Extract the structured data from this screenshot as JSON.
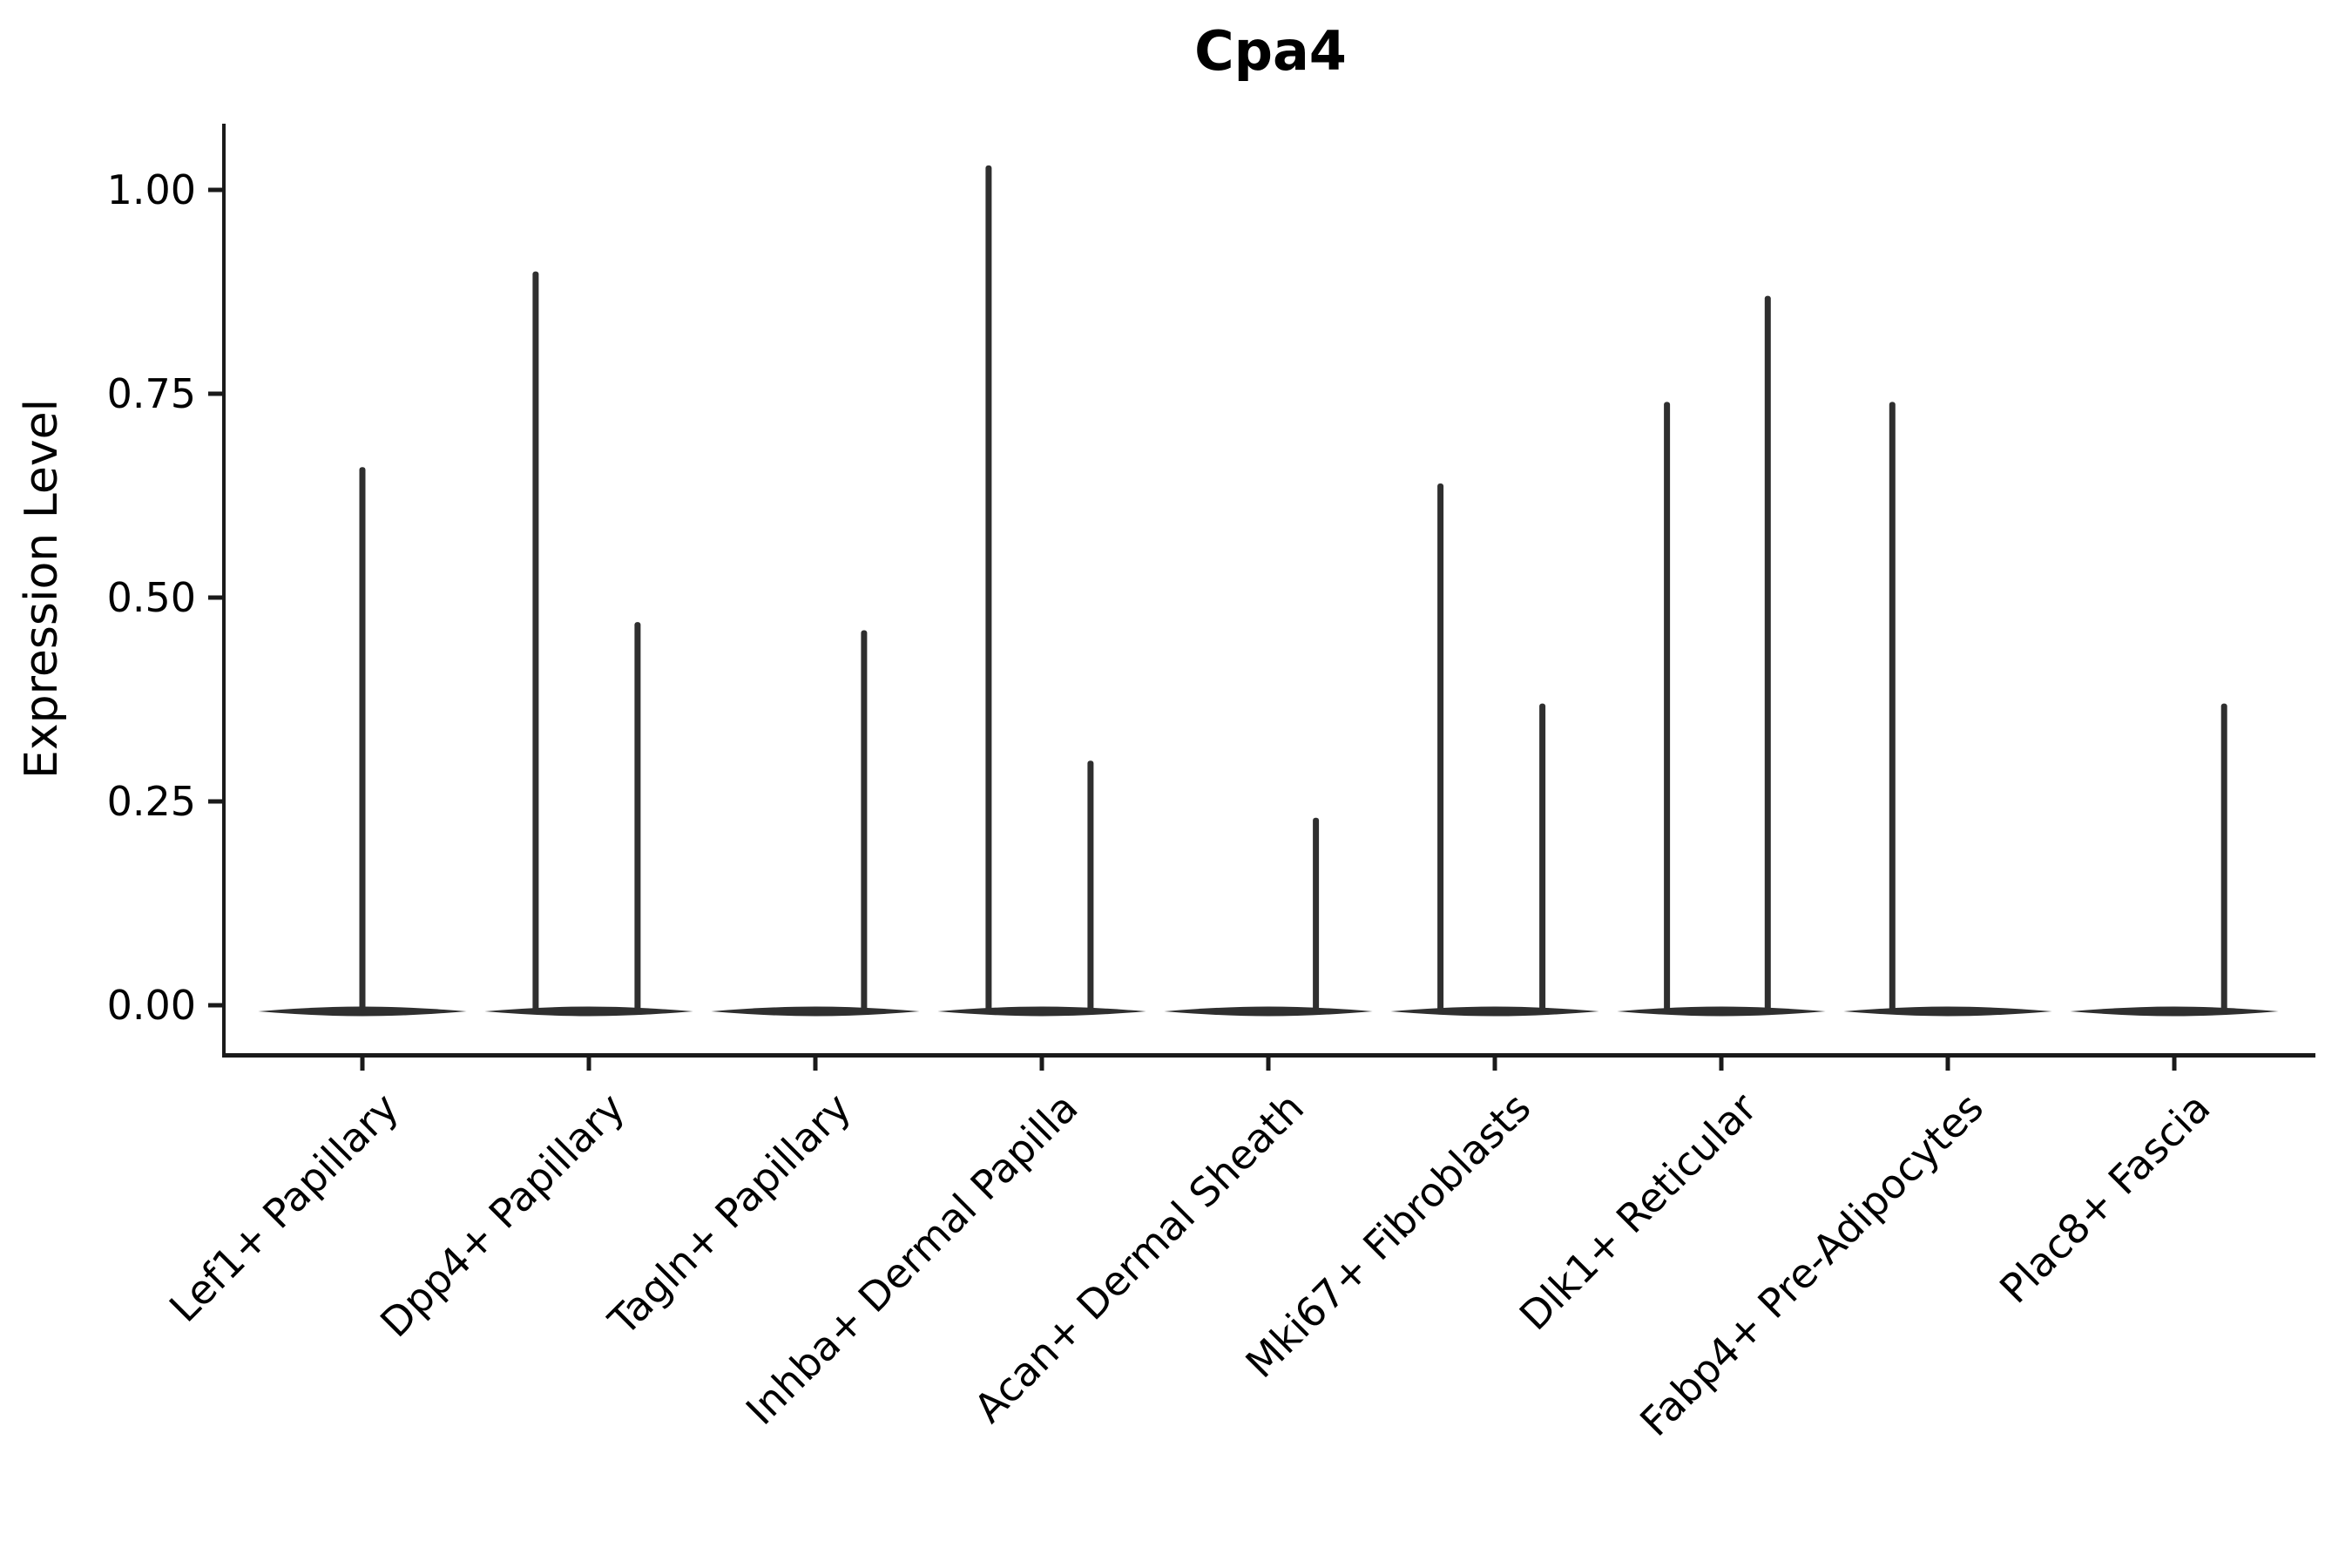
{
  "title": "Cpa4",
  "axes": {
    "ylabel": "Expression Level",
    "ytick_labels": [
      "1.00",
      "0.75",
      "0.50",
      "0.25",
      "0.00"
    ],
    "ytick_values": [
      1.0,
      0.75,
      0.5,
      0.25,
      0.0
    ]
  },
  "colors": {
    "violin": "#2f2f2f",
    "axis": "#1a1a1a",
    "text": "#000000",
    "background": "#ffffff"
  },
  "chart_data": {
    "type": "violin",
    "title": "Cpa4",
    "xlabel": "",
    "ylabel": "Expression Level",
    "ylim": [
      -0.059,
      1.08
    ],
    "yticks": [
      0.0,
      0.25,
      0.5,
      0.75,
      1.0
    ],
    "grid": false,
    "legend": "none",
    "categories": [
      "Lef1+ Papillary",
      "Dpp4+ Papillary",
      "Tagln+ Papillary",
      "Inhba+ Dermal Papilla",
      "Acan+ Dermal Sheath",
      "Mki67+ Fibroblasts",
      "Dlk1+ Reticular",
      "Fabp4+ Pre-Adipocytes",
      "Plac8+ Fascia"
    ],
    "body_halfwidth_units": 0.46,
    "description": "Each category shows a flat density lens at expression 0 with thin spikes rising to the maximum expression value; offset is the spike position within the category slot in category-width units.",
    "violins": [
      {
        "category": "Lef1+ Papillary",
        "spikes": [
          {
            "offset": 0.0,
            "max": 0.66
          }
        ]
      },
      {
        "category": "Dpp4+ Papillary",
        "spikes": [
          {
            "offset": -0.235,
            "max": 0.9
          },
          {
            "offset": 0.215,
            "max": 0.47
          }
        ]
      },
      {
        "category": "Tagln+ Papillary",
        "spikes": [
          {
            "offset": 0.215,
            "max": 0.46
          }
        ]
      },
      {
        "category": "Inhba+ Dermal Papilla",
        "spikes": [
          {
            "offset": -0.235,
            "max": 1.03
          },
          {
            "offset": 0.215,
            "max": 0.3
          }
        ]
      },
      {
        "category": "Acan+ Dermal Sheath",
        "spikes": [
          {
            "offset": 0.21,
            "max": 0.23
          }
        ]
      },
      {
        "category": "Mki67+ Fibroblasts",
        "spikes": [
          {
            "offset": -0.24,
            "max": 0.64
          },
          {
            "offset": 0.21,
            "max": 0.37
          }
        ]
      },
      {
        "category": "Dlk1+ Reticular",
        "spikes": [
          {
            "offset": -0.24,
            "max": 0.74
          },
          {
            "offset": 0.205,
            "max": 0.87
          }
        ]
      },
      {
        "category": "Fabp4+ Pre-Adipocytes",
        "spikes": [
          {
            "offset": -0.245,
            "max": 0.74
          }
        ]
      },
      {
        "category": "Plac8+ Fascia",
        "spikes": [
          {
            "offset": 0.22,
            "max": 0.37
          }
        ]
      }
    ]
  }
}
